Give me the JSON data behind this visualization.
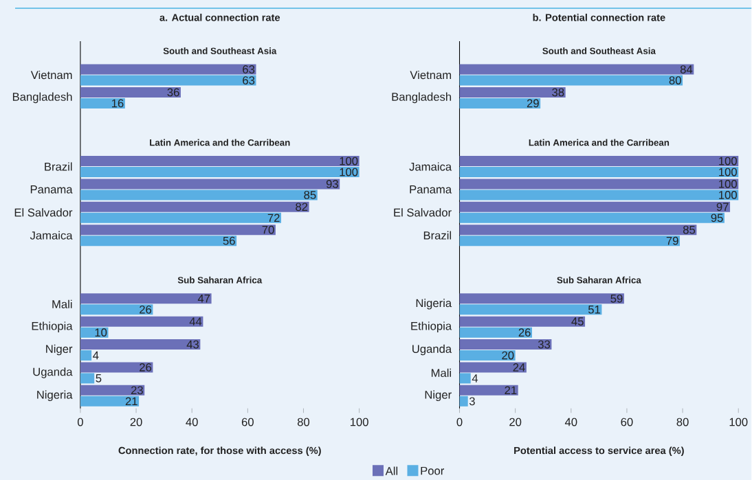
{
  "chart_data": [
    {
      "type": "bar",
      "orientation": "horizontal",
      "title": "a. Actual connection rate",
      "xlabel": "Connection rate, for those with access (%)",
      "categories": [
        "Vietnam",
        "Bangladesh",
        null,
        null,
        "Brazil",
        "Panama",
        "El Salvador",
        "Jamaica",
        null,
        null,
        "Mali",
        "Ethiopia",
        "Niger",
        "Uganda",
        "Nigeria"
      ],
      "series": [
        {
          "color": "#6b70b8",
          "values": [
            63,
            36,
            null,
            null,
            100,
            93,
            82,
            70,
            null,
            null,
            47,
            44,
            43,
            26,
            23
          ]
        },
        {
          "color": "#5aafe3",
          "values": [
            63,
            16,
            null,
            null,
            100,
            85,
            72,
            56,
            null,
            null,
            26,
            10,
            4,
            5,
            21
          ]
        }
      ],
      "xlim": [
        0,
        100
      ],
      "xticks": [
        0,
        20,
        40,
        60,
        80,
        100
      ],
      "data_labels": true,
      "annotations": [
        "South and Southeast Asia",
        "Latin America and the Carribean",
        "Sub Saharan Africa"
      ]
    },
    {
      "type": "bar",
      "orientation": "horizontal",
      "title": "b. Potential connection rate",
      "xlabel": "Potential access to service area (%)",
      "categories": [
        "Vietnam",
        "Bangladesh",
        null,
        null,
        "Jamaica",
        "Panama",
        "El Salvador",
        "Brazil",
        null,
        null,
        "Nigeria",
        "Ethiopia",
        "Uganda",
        "Mali",
        "Niger"
      ],
      "series": [
        {
          "name": "All",
          "color": "#6b70b8",
          "values": [
            84,
            38,
            null,
            null,
            100,
            100,
            97,
            85,
            null,
            null,
            59,
            45,
            33,
            24,
            21
          ]
        },
        {
          "name": "Poor",
          "color": "#5aafe3",
          "values": [
            80,
            29,
            null,
            null,
            100,
            100,
            95,
            79,
            null,
            null,
            51,
            26,
            20,
            4,
            3
          ]
        }
      ],
      "xlim": [
        0,
        100
      ],
      "xticks": [
        0,
        20,
        40,
        60,
        80,
        100
      ],
      "data_labels": true,
      "legend": "bottom",
      "annotations": [
        "South and Southeast Asia",
        "Latin America and the Carribean",
        "Sub Saharan Africa"
      ]
    }
  ]
}
